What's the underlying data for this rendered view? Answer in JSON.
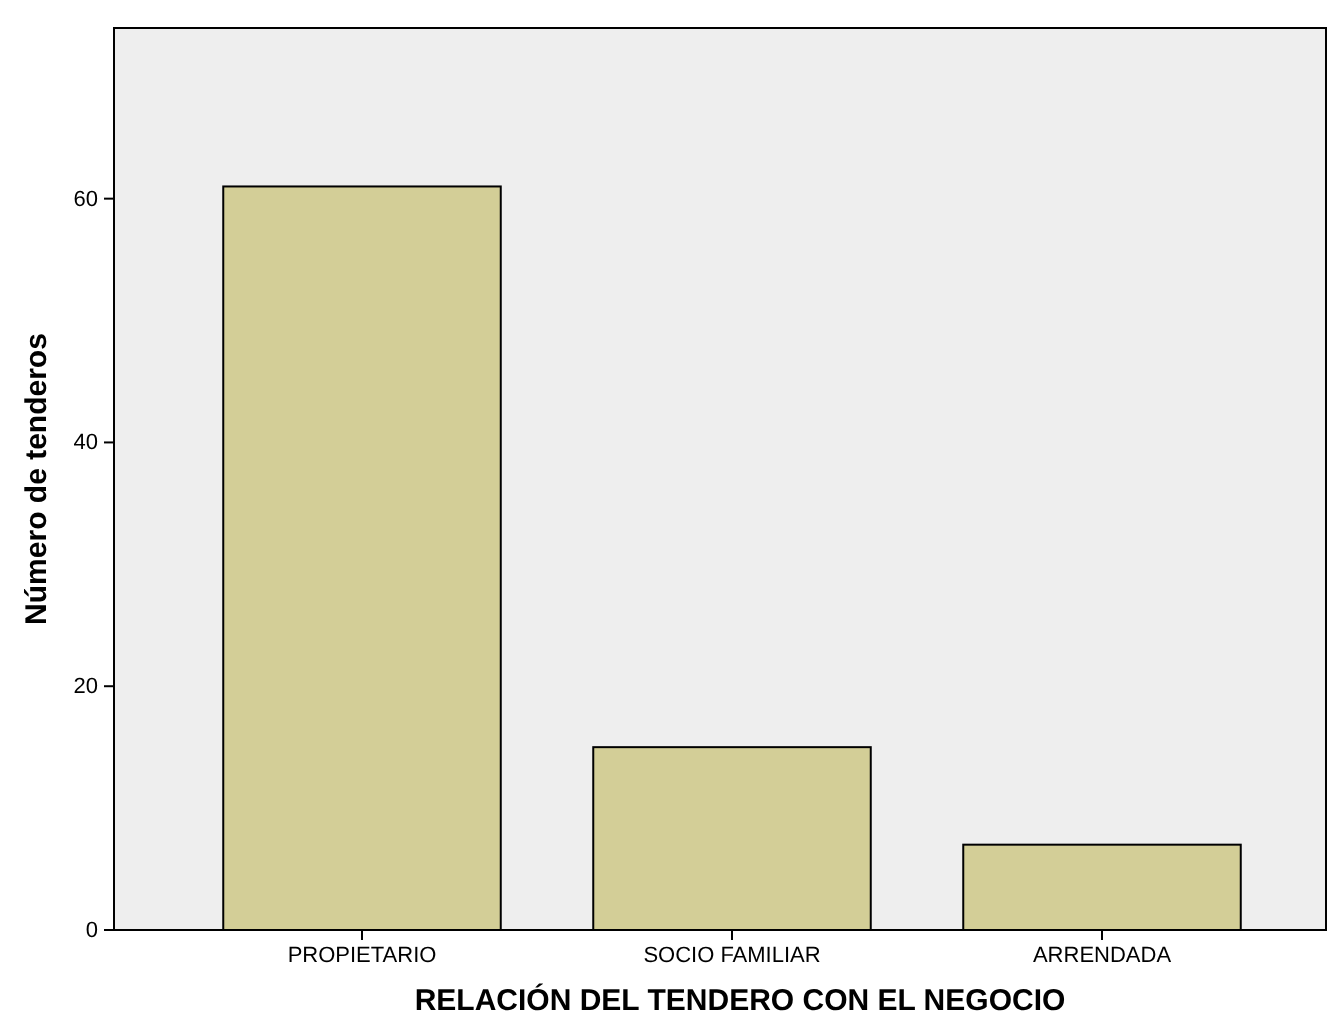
{
  "chart_data": {
    "type": "bar",
    "xlabel": "RELACIÓN DEL TENDERO CON EL NEGOCIO",
    "ylabel": "Número de tenderos",
    "categories": [
      "PROPIETARIO",
      "SOCIO FAMILIAR",
      "ARRENDADA"
    ],
    "values": [
      61,
      15,
      7
    ],
    "color": "#d3ce97",
    "ylim": [
      0,
      74
    ],
    "yticks": [
      0,
      20,
      40,
      60
    ]
  }
}
